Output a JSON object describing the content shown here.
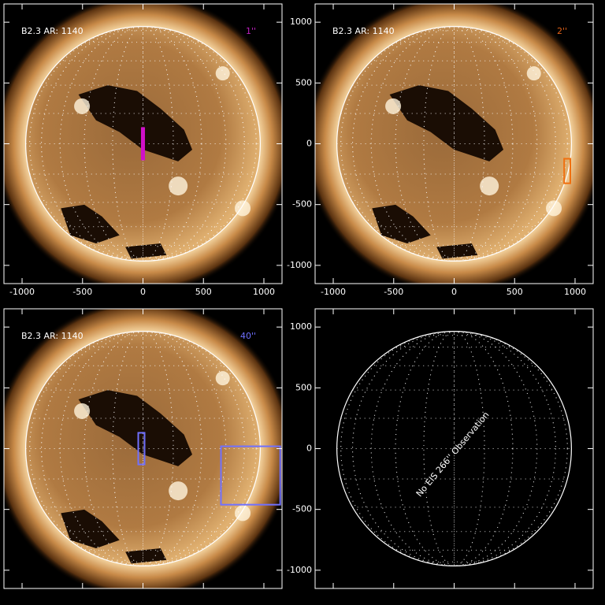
{
  "chart_data": [
    {
      "type": "sun",
      "label": "B2.3 AR: 1140",
      "resolution": "1''",
      "resolution_color": "#c020c0",
      "xlim": [
        -1150,
        1150
      ],
      "ylim": [
        -1150,
        1150
      ],
      "xticks": [
        -1000,
        -500,
        0,
        500,
        1000
      ],
      "yticks": [
        -1000,
        -500,
        0,
        500,
        1000
      ],
      "show_xtick_labels": true,
      "show_ytick_labels": false,
      "disk_radius": 970,
      "boxes": [
        {
          "x": [
            -10,
            10
          ],
          "y": [
            -130,
            130
          ],
          "color": "#d010c8",
          "filled": true
        }
      ]
    },
    {
      "type": "sun",
      "label": "B2.3 AR: 1140",
      "resolution": "2''",
      "resolution_color": "#e06018",
      "xlim": [
        -1150,
        1150
      ],
      "ylim": [
        -1150,
        1150
      ],
      "xticks": [
        -1000,
        -500,
        0,
        500,
        1000
      ],
      "yticks": [
        -1000,
        -500,
        0,
        500,
        1000
      ],
      "show_xtick_labels": true,
      "show_ytick_labels": true,
      "disk_radius": 970,
      "boxes": [
        {
          "x": [
            910,
            961
          ],
          "y": [
            -325,
            -123
          ],
          "color": "#f07010",
          "filled": false
        }
      ]
    },
    {
      "type": "sun",
      "label": "B2.3 AR: 1140",
      "resolution": "40''",
      "resolution_color": "#7070ff",
      "xlim": [
        -1150,
        1150
      ],
      "ylim": [
        -1150,
        1150
      ],
      "xticks": [
        -1000,
        -500,
        0,
        500,
        1000
      ],
      "yticks": [
        -1000,
        -500,
        0,
        500,
        1000
      ],
      "show_xtick_labels": false,
      "show_ytick_labels": false,
      "disk_radius": 970,
      "boxes": [
        {
          "x": [
            -39,
            13
          ],
          "y": [
            -130,
            130
          ],
          "color": "#7070ff",
          "filled": false
        },
        {
          "x": [
            645,
            1135
          ],
          "y": [
            -461,
            19
          ],
          "color": "#7070ff",
          "filled": false
        }
      ]
    },
    {
      "type": "empty",
      "annotation": "No EIS 266'' Observation",
      "xlim": [
        -1150,
        1150
      ],
      "ylim": [
        -1150,
        1150
      ],
      "xticks": [
        -1000,
        -500,
        0,
        500,
        1000
      ],
      "yticks": [
        -1000,
        -500,
        0,
        500,
        1000
      ],
      "show_xtick_labels": false,
      "show_ytick_labels": true,
      "disk_radius": 970,
      "boxes": []
    }
  ]
}
